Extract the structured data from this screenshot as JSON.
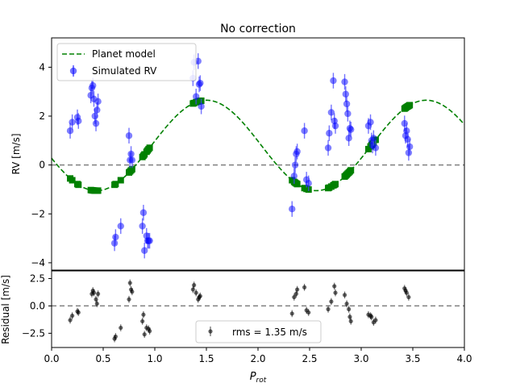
{
  "chart_data": [
    {
      "type": "scatter",
      "title": "No correction",
      "xlabel": "",
      "ylabel": "RV [m/s]",
      "xlim": [
        0.0,
        4.0
      ],
      "ylim": [
        -4.3,
        5.2
      ],
      "yticks": [
        4,
        2,
        0,
        -2,
        -4
      ],
      "ytick_labels": [
        "4",
        "2",
        "0",
        "−2",
        "−4"
      ],
      "zero_line": 0,
      "legend": {
        "placement": "top-left",
        "entries": [
          "Planet model",
          "Simulated RV"
        ]
      },
      "model": {
        "name": "Planet model",
        "color": "#008000",
        "style": "dashed",
        "amplitude": 1.85,
        "offset": 0.8,
        "period": 2.13,
        "peak_x": 1.5
      },
      "series": [
        {
          "name": "Simulated RV",
          "color": "#0000ff",
          "x": [
            0.18,
            0.2,
            0.25,
            0.26,
            0.38,
            0.39,
            0.4,
            0.41,
            0.42,
            0.43,
            0.44,
            0.45,
            0.61,
            0.62,
            0.67,
            0.75,
            0.76,
            0.77,
            0.78,
            0.88,
            0.89,
            0.9,
            0.92,
            0.93,
            0.94,
            0.95,
            1.37,
            1.38,
            1.4,
            1.42,
            1.43,
            1.44,
            1.45,
            2.33,
            2.35,
            2.36,
            2.37,
            2.38,
            2.45,
            2.47,
            2.49,
            2.68,
            2.69,
            2.71,
            2.73,
            2.74,
            2.75,
            2.84,
            2.85,
            2.86,
            2.87,
            2.88,
            2.89,
            2.9,
            3.07,
            3.09,
            3.1,
            3.11,
            3.12,
            3.14,
            3.42,
            3.43,
            3.44,
            3.45,
            3.46,
            3.47
          ],
          "y": [
            1.4,
            1.75,
            1.95,
            1.8,
            2.85,
            3.15,
            3.25,
            2.7,
            2.0,
            1.7,
            2.25,
            2.6,
            -3.2,
            -2.95,
            -2.5,
            1.2,
            0.2,
            0.45,
            0.2,
            -2.5,
            -1.95,
            -3.5,
            -2.9,
            -3.1,
            -3.1,
            -3.1,
            3.55,
            4.2,
            2.8,
            4.25,
            3.3,
            3.35,
            2.4,
            -1.8,
            -0.45,
            0.0,
            0.45,
            0.55,
            1.4,
            -0.6,
            -0.75,
            0.7,
            1.3,
            2.15,
            3.45,
            1.8,
            1.6,
            3.4,
            2.9,
            2.5,
            2.1,
            1.1,
            1.5,
            1.45,
            1.6,
            1.75,
            1.0,
            0.8,
            1.1,
            0.7,
            1.7,
            1.2,
            1.4,
            1.05,
            0.5,
            0.75
          ],
          "err": [
            0.32,
            0.32,
            0.32,
            0.32,
            0.32,
            0.32,
            0.32,
            0.32,
            0.32,
            0.32,
            0.32,
            0.32,
            0.32,
            0.32,
            0.32,
            0.32,
            0.32,
            0.32,
            0.32,
            0.32,
            0.32,
            0.32,
            0.32,
            0.32,
            0.32,
            0.32,
            0.32,
            0.32,
            0.32,
            0.32,
            0.32,
            0.32,
            0.32,
            0.32,
            0.32,
            0.32,
            0.32,
            0.32,
            0.32,
            0.32,
            0.32,
            0.32,
            0.32,
            0.32,
            0.32,
            0.32,
            0.32,
            0.32,
            0.32,
            0.32,
            0.32,
            0.32,
            0.32,
            0.32,
            0.32,
            0.32,
            0.32,
            0.32,
            0.32,
            0.32,
            0.32,
            0.32,
            0.32,
            0.32,
            0.32,
            0.32
          ]
        }
      ]
    },
    {
      "type": "scatter",
      "title": "",
      "xlabel": "P_rot",
      "ylabel": "Residual [m/s]",
      "xlim": [
        0.0,
        4.0
      ],
      "ylim": [
        -3.8,
        3.2
      ],
      "xticks": [
        0.0,
        0.5,
        1.0,
        1.5,
        2.0,
        2.5,
        3.0,
        3.5,
        4.0
      ],
      "xtick_labels": [
        "0.0",
        "0.5",
        "1.0",
        "1.5",
        "2.0",
        "2.5",
        "3.0",
        "3.5",
        "4.0"
      ],
      "yticks": [
        2.5,
        0.0,
        -2.5
      ],
      "ytick_labels": [
        "2.5",
        "0.0",
        "−2.5"
      ],
      "zero_line": 0,
      "annotation": "rms = 1.35 m/s",
      "series": [
        {
          "name": "",
          "color": "#000000",
          "x": [
            0.18,
            0.2,
            0.25,
            0.26,
            0.39,
            0.4,
            0.41,
            0.43,
            0.44,
            0.45,
            0.61,
            0.62,
            0.67,
            0.75,
            0.76,
            0.77,
            0.78,
            0.88,
            0.89,
            0.9,
            0.92,
            0.94,
            0.95,
            1.37,
            1.38,
            1.4,
            1.42,
            1.43,
            1.44,
            2.33,
            2.35,
            2.37,
            2.38,
            2.45,
            2.47,
            2.49,
            2.68,
            2.71,
            2.74,
            2.75,
            2.84,
            2.86,
            2.88,
            2.89,
            2.9,
            3.07,
            3.09,
            3.1,
            3.12,
            3.14,
            3.42,
            3.43,
            3.44,
            3.46
          ],
          "y": [
            -1.3,
            -0.9,
            -0.5,
            -0.6,
            1.1,
            1.4,
            1.2,
            0.6,
            0.2,
            1.1,
            -3.0,
            -2.8,
            -2.0,
            0.6,
            2.1,
            1.5,
            1.3,
            -1.4,
            -0.8,
            -2.6,
            -2.0,
            -2.1,
            -2.3,
            1.5,
            1.9,
            1.2,
            0.6,
            0.8,
            0.9,
            -0.7,
            0.8,
            1.1,
            1.5,
            1.7,
            -0.4,
            -0.6,
            -0.3,
            0.4,
            1.8,
            1.2,
            1.0,
            0.2,
            -0.3,
            -1.0,
            -1.4,
            -0.8,
            -0.9,
            -1.0,
            -1.5,
            -1.3,
            1.6,
            1.4,
            1.2,
            0.8
          ],
          "err": [
            0.32,
            0.32,
            0.32,
            0.32,
            0.32,
            0.32,
            0.32,
            0.32,
            0.32,
            0.32,
            0.32,
            0.32,
            0.32,
            0.32,
            0.32,
            0.32,
            0.32,
            0.32,
            0.32,
            0.32,
            0.32,
            0.32,
            0.32,
            0.32,
            0.32,
            0.32,
            0.32,
            0.32,
            0.32,
            0.32,
            0.32,
            0.32,
            0.32,
            0.32,
            0.32,
            0.32,
            0.32,
            0.32,
            0.32,
            0.32,
            0.32,
            0.32,
            0.32,
            0.32,
            0.32,
            0.32,
            0.32,
            0.32,
            0.32,
            0.32,
            0.32,
            0.32,
            0.32,
            0.32
          ]
        }
      ]
    }
  ]
}
